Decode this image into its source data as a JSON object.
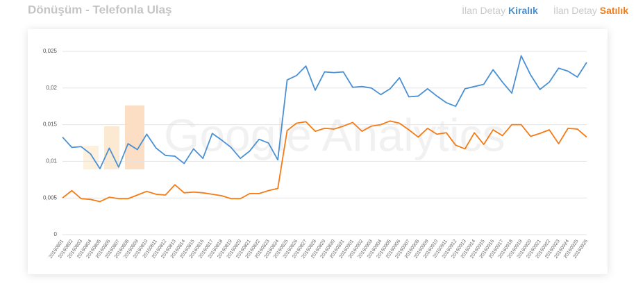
{
  "chart_data": {
    "type": "line",
    "title": "Dönüşüm - Telefonla Ulaş",
    "watermark": "Google Analytics",
    "categories": [
      "20160801",
      "20160802",
      "20160803",
      "20160804",
      "20160805",
      "20160806",
      "20160807",
      "20160808",
      "20160809",
      "20160810",
      "20160811",
      "20160812",
      "20160813",
      "20160814",
      "20160815",
      "20160816",
      "20160817",
      "20160818",
      "20160819",
      "20160820",
      "20160821",
      "20160822",
      "20160823",
      "20160824",
      "20160825",
      "20160826",
      "20160827",
      "20160828",
      "20160829",
      "20160830",
      "20160831",
      "20160901",
      "20160902",
      "20160903",
      "20160904",
      "20160905",
      "20160906",
      "20160907",
      "20160908",
      "20160909",
      "20160910",
      "20160911",
      "20160912",
      "20160913",
      "20160914",
      "20160915",
      "20160916",
      "20160917",
      "20160918",
      "20160919",
      "20160920",
      "20160921",
      "20160922",
      "20160923",
      "20160924",
      "20160925",
      "20160926"
    ],
    "series": [
      {
        "name": "İlan Detay Kiralık",
        "color": "#4a90d2",
        "values": [
          0.0133,
          0.0119,
          0.012,
          0.011,
          0.009,
          0.0118,
          0.0092,
          0.0124,
          0.0116,
          0.0137,
          0.0118,
          0.0108,
          0.0107,
          0.0097,
          0.0117,
          0.0104,
          0.0138,
          0.0129,
          0.0119,
          0.0104,
          0.0114,
          0.013,
          0.0125,
          0.0102,
          0.0211,
          0.0217,
          0.023,
          0.0197,
          0.0222,
          0.0221,
          0.0222,
          0.0201,
          0.0202,
          0.02,
          0.0191,
          0.0199,
          0.0214,
          0.0188,
          0.0189,
          0.0199,
          0.0189,
          0.018,
          0.0175,
          0.0199,
          0.0202,
          0.0205,
          0.0225,
          0.0208,
          0.0193,
          0.0244,
          0.0218,
          0.0198,
          0.0208,
          0.0227,
          0.0223,
          0.0215,
          0.0235
        ]
      },
      {
        "name": "İlan Detay Satılık",
        "color": "#f47b16",
        "values": [
          0.005,
          0.006,
          0.0049,
          0.0048,
          0.0045,
          0.0051,
          0.0049,
          0.0049,
          0.0054,
          0.0059,
          0.0055,
          0.0054,
          0.0068,
          0.0057,
          0.0058,
          0.0057,
          0.0055,
          0.0053,
          0.0049,
          0.0049,
          0.0056,
          0.0056,
          0.006,
          0.0063,
          0.0142,
          0.0152,
          0.0154,
          0.0141,
          0.0145,
          0.0144,
          0.0148,
          0.0153,
          0.0141,
          0.0148,
          0.015,
          0.0155,
          0.0152,
          0.0143,
          0.0133,
          0.0145,
          0.0137,
          0.0139,
          0.0122,
          0.0117,
          0.0139,
          0.0123,
          0.0143,
          0.0135,
          0.015,
          0.015,
          0.0134,
          0.0138,
          0.0143,
          0.0124,
          0.0145,
          0.0144,
          0.0133
        ]
      }
    ],
    "ylim": [
      0,
      0.025
    ],
    "yticks": [
      0,
      {
        "value": 0.005,
        "label": "0,005"
      },
      {
        "value": 0.01,
        "label": "0,01"
      },
      {
        "value": 0.015,
        "label": "0,015"
      },
      {
        "value": 0.02,
        "label": "0,02"
      },
      {
        "value": 0.025,
        "label": "0,025"
      }
    ],
    "grid": true
  }
}
